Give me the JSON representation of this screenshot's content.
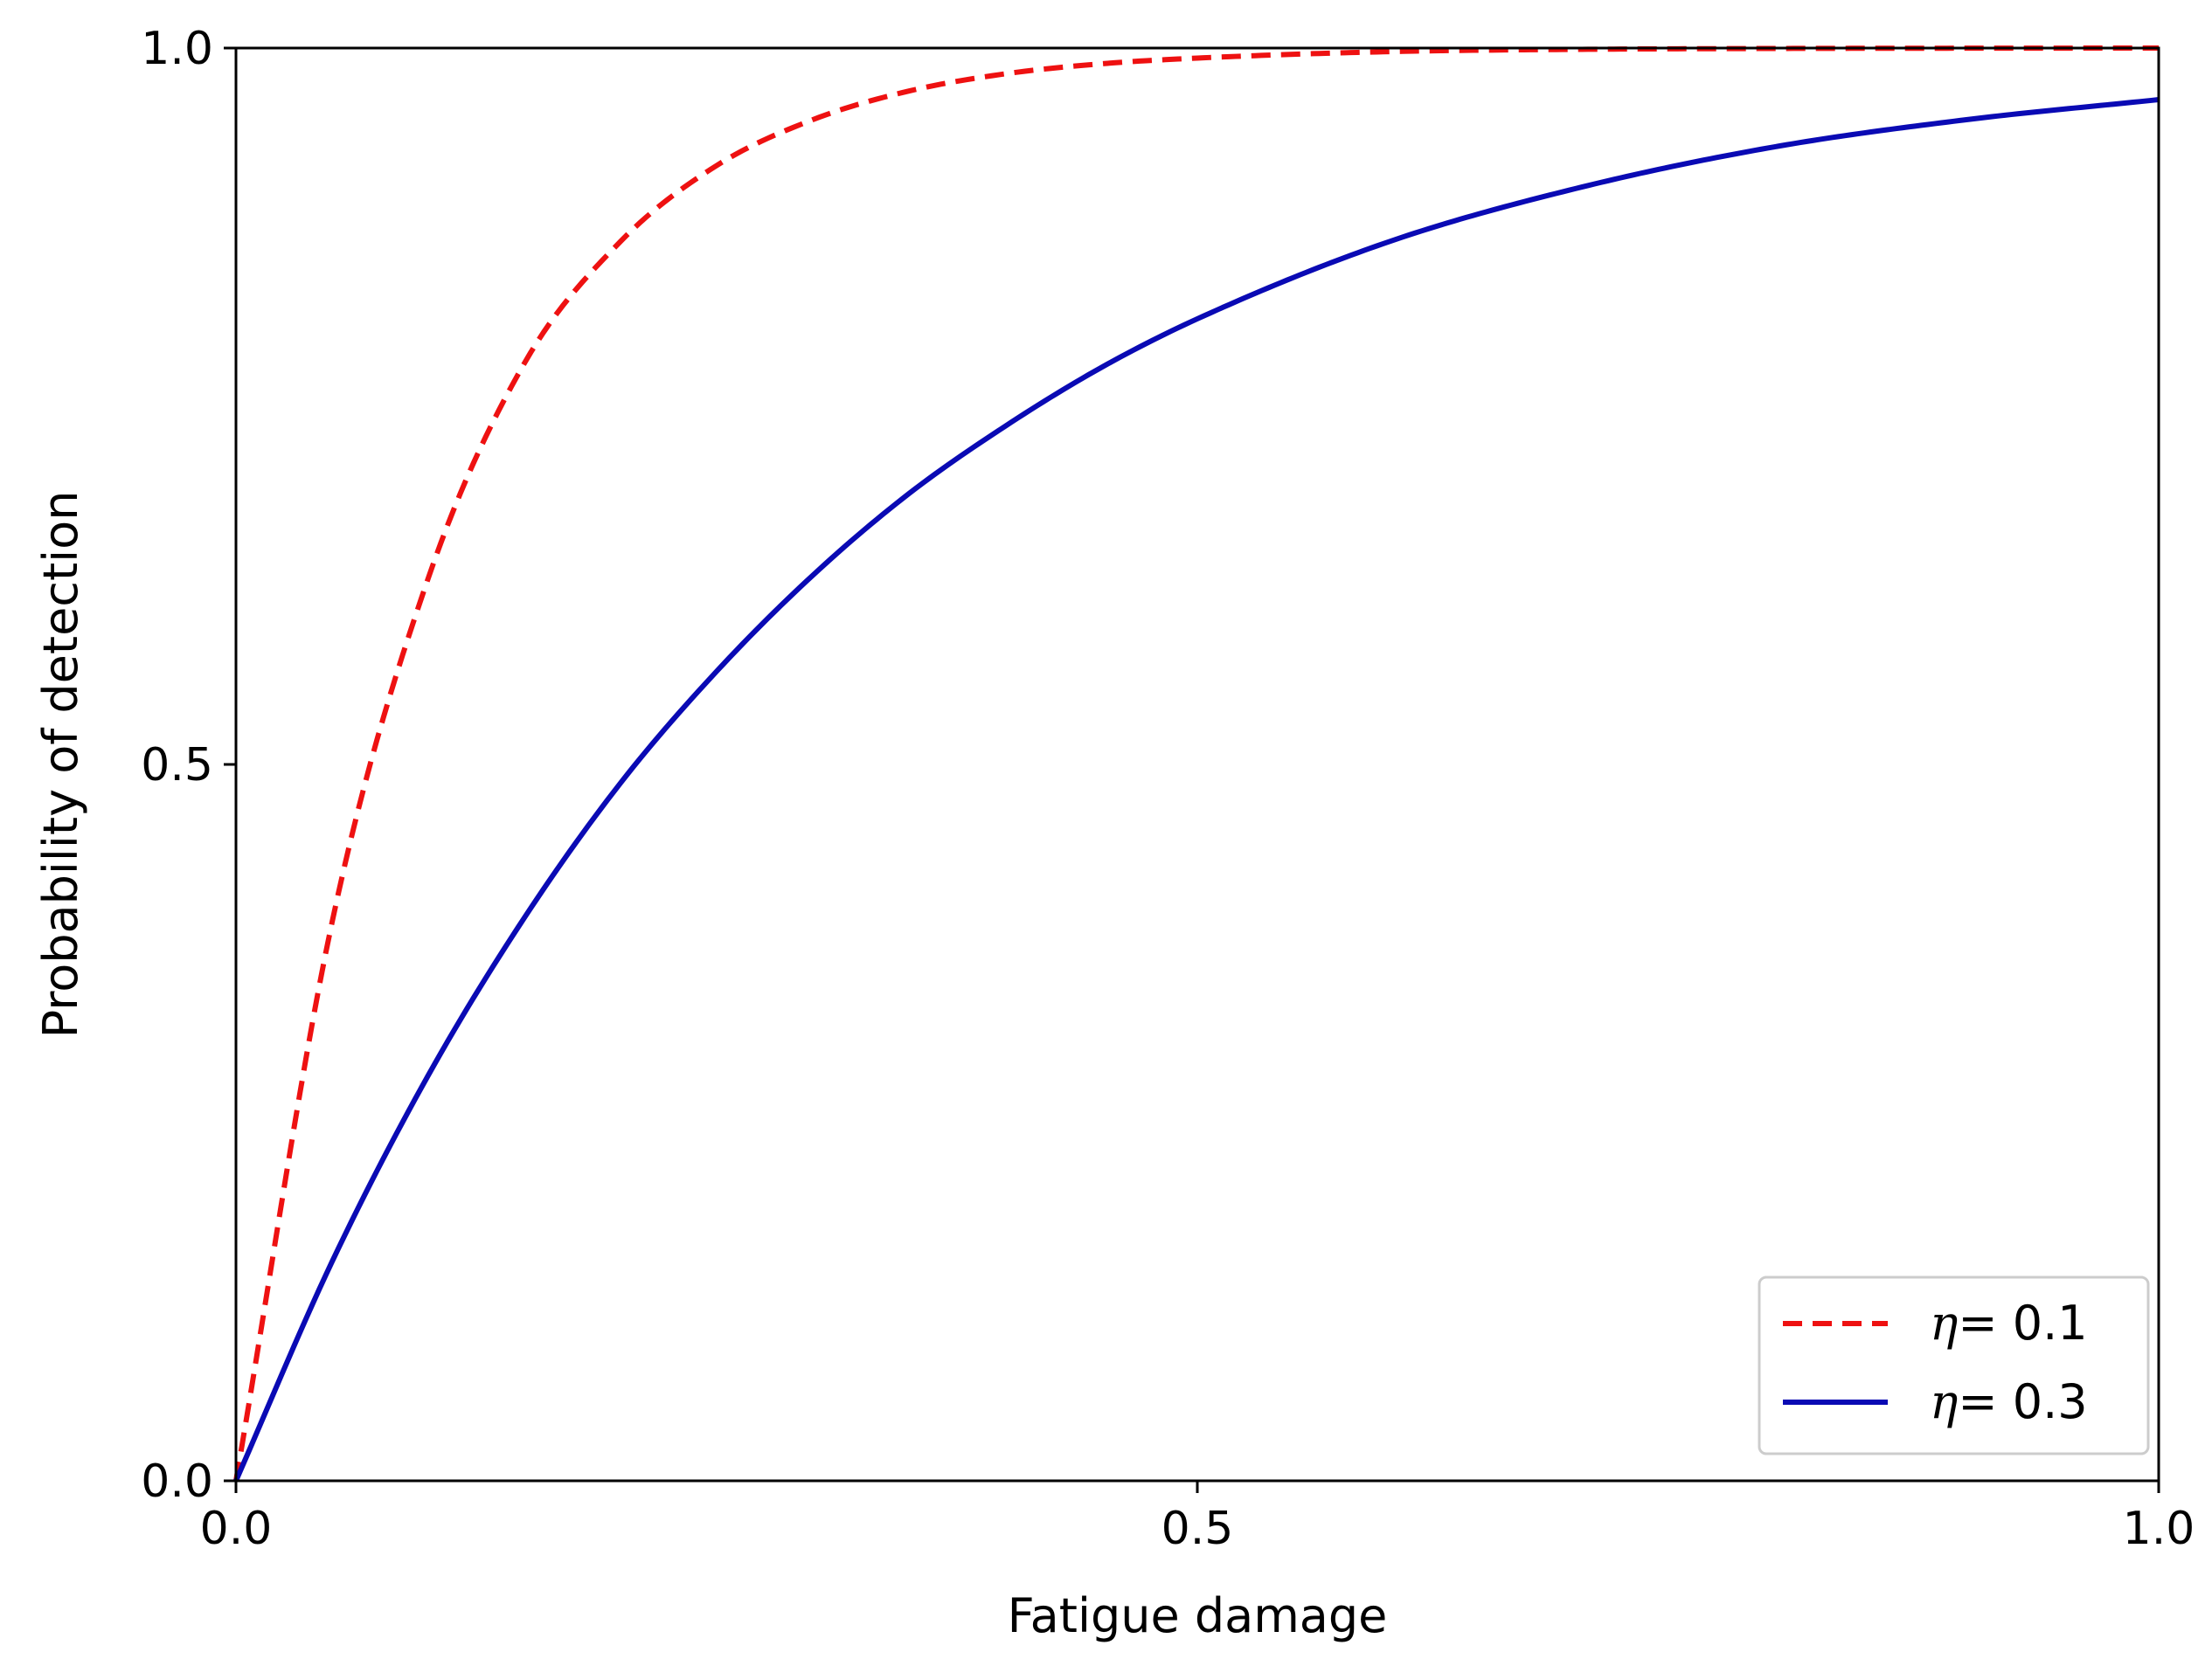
{
  "chart_data": {
    "type": "line",
    "title": "",
    "xlabel": "Fatigue damage",
    "ylabel": "Probability of detection",
    "xlim": [
      0,
      1
    ],
    "ylim": [
      0,
      1
    ],
    "xticks": [
      "0.0",
      "0.5",
      "1.0"
    ],
    "yticks": [
      "0.0",
      "0.5",
      "1.0"
    ],
    "grid": false,
    "legend_position": "lower-right",
    "series": [
      {
        "name": "η= 0.1",
        "legend_symbol": "η",
        "legend_value": "= 0.1",
        "color": "#ee1111",
        "style": "dashed",
        "x": [
          0.0,
          0.05,
          0.1,
          0.15,
          0.2,
          0.25,
          0.3,
          0.35,
          0.4,
          0.45,
          0.5,
          0.6,
          0.7,
          0.8,
          0.9,
          1.0
        ],
        "y": [
          0.0,
          0.39,
          0.63,
          0.78,
          0.865,
          0.918,
          0.95,
          0.97,
          0.982,
          0.989,
          0.993,
          0.9975,
          0.9991,
          0.9997,
          0.9999,
          1.0
        ]
      },
      {
        "name": "η= 0.3",
        "legend_symbol": "η",
        "legend_value": "= 0.3",
        "color": "#0a0ab4",
        "style": "solid",
        "x": [
          0.0,
          0.05,
          0.1,
          0.15,
          0.2,
          0.25,
          0.3,
          0.35,
          0.4,
          0.45,
          0.5,
          0.6,
          0.7,
          0.8,
          0.9,
          1.0
        ],
        "y": [
          0.0,
          0.153,
          0.283,
          0.393,
          0.487,
          0.565,
          0.632,
          0.689,
          0.736,
          0.777,
          0.811,
          0.865,
          0.903,
          0.931,
          0.95,
          0.964
        ]
      }
    ]
  }
}
